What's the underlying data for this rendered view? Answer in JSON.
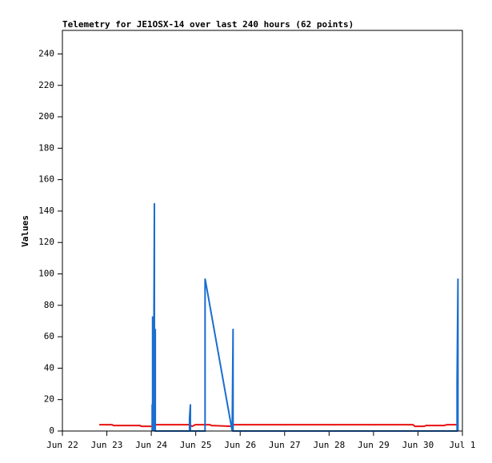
{
  "chart_data": {
    "type": "line",
    "title": "Telemetry for JE1OSX-14 over last 240 hours (62 points)",
    "y_label": "Values",
    "xlim": [
      22,
      31
    ],
    "xticks": [
      {
        "value": 22,
        "label": "Jun 22"
      },
      {
        "value": 23,
        "label": "Jun 23"
      },
      {
        "value": 24,
        "label": "Jun 24"
      },
      {
        "value": 25,
        "label": "Jun 25"
      },
      {
        "value": 26,
        "label": "Jun 26"
      },
      {
        "value": 27,
        "label": "Jun 27"
      },
      {
        "value": 28,
        "label": "Jun 28"
      },
      {
        "value": 29,
        "label": "Jun 29"
      },
      {
        "value": 30,
        "label": "Jun 30"
      },
      {
        "value": 31,
        "label": "Jul 1"
      }
    ],
    "ylim": [
      0,
      255
    ],
    "yticks": [
      0,
      20,
      40,
      60,
      80,
      100,
      120,
      140,
      160,
      180,
      200,
      220,
      240
    ],
    "grid": false,
    "series": [
      {
        "color": "#e8110f",
        "x": [
          22.83,
          23.12,
          23.15,
          23.75,
          23.77,
          24.02,
          24.05,
          24.86,
          24.92,
          24.99,
          25.32,
          25.35,
          25.82,
          25.86,
          29.89,
          29.93,
          30.14,
          30.18,
          30.59,
          30.65,
          30.9
        ],
        "values": [
          4,
          4,
          3.5,
          3.5,
          3,
          3,
          4,
          4,
          3,
          4,
          4,
          3.5,
          3,
          4,
          4,
          3,
          3,
          3.5,
          3.5,
          4,
          4
        ]
      },
      {
        "color": "#1a6ecf",
        "x": [
          24.02,
          24.02,
          24.03,
          24.03,
          24.05,
          24.07,
          24.07,
          24.09,
          24.09,
          24.86,
          24.86,
          24.88,
          24.88,
          25.21,
          25.21,
          25.82,
          25.84,
          25.84,
          30.88,
          30.88,
          30.9,
          30.9
        ],
        "values": [
          0,
          17,
          0,
          73,
          0,
          145,
          0,
          65,
          0,
          0,
          8,
          17,
          0,
          0,
          97,
          0,
          65,
          0,
          0,
          32,
          97,
          0
        ]
      }
    ]
  }
}
